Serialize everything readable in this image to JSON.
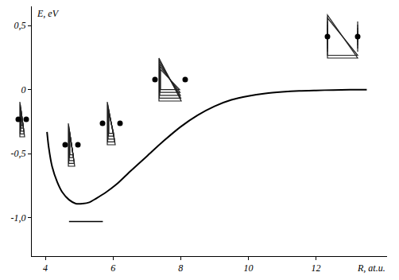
{
  "chart_data": {
    "type": "line",
    "x_label": "R, at.u.",
    "y_label": "E, eV",
    "x": [
      4.05,
      4.1,
      4.2,
      4.35,
      4.5,
      4.7,
      4.9,
      5.1,
      5.3,
      5.5,
      5.8,
      6.1,
      6.5,
      7,
      7.5,
      8,
      8.5,
      9,
      9.5,
      10,
      10.5,
      11,
      11.5,
      12,
      12.5,
      13,
      13.5
    ],
    "values": [
      -0.33,
      -0.45,
      -0.6,
      -0.72,
      -0.8,
      -0.86,
      -0.89,
      -0.89,
      -0.88,
      -0.85,
      -0.8,
      -0.74,
      -0.64,
      -0.52,
      -0.4,
      -0.29,
      -0.2,
      -0.13,
      -0.08,
      -0.05,
      -0.03,
      -0.018,
      -0.01,
      -0.006,
      -0.003,
      -0.001,
      0
    ],
    "color": "#000000",
    "segments": [
      {
        "x": [
          4.7,
          5.7
        ],
        "y": -1.03
      }
    ],
    "xlim": [
      3.6,
      14.1
    ],
    "ylim": [
      -1.3,
      0.65
    ],
    "xticks": [
      4,
      6,
      8,
      10,
      12
    ],
    "yticks": [
      {
        "value": 0.5,
        "label": "0,5"
      },
      0,
      {
        "value": -0.5,
        "label": "-0,5"
      },
      {
        "value": -1.0,
        "label": "-1,0"
      }
    ],
    "grid": false
  }
}
